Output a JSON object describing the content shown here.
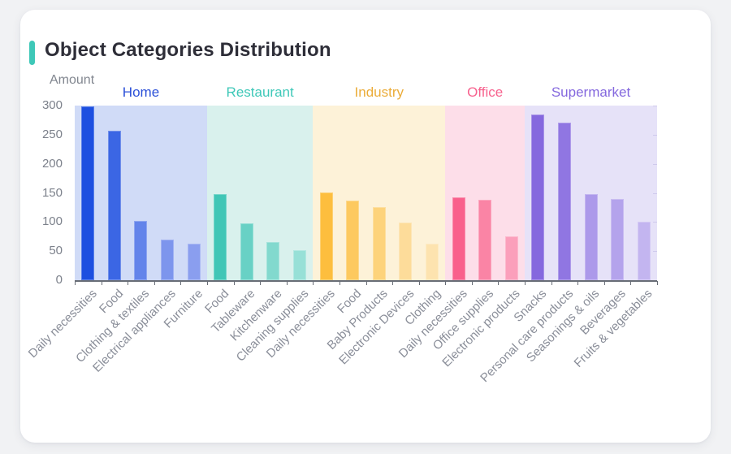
{
  "page": {
    "background": "#f1f2f4"
  },
  "card": {
    "background": "#ffffff",
    "accent_color": "#3EC8B8"
  },
  "chart_data": {
    "type": "bar",
    "title": "Object Categories Distribution",
    "xlabel": "",
    "ylabel": "Amount",
    "ylim": [
      0,
      300
    ],
    "yticks": [
      0,
      50,
      100,
      150,
      200,
      250,
      300
    ],
    "grid": false,
    "x_label_rotation": 45,
    "axis_color": "#686d76",
    "tick_label_color": "#8a8e99",
    "groups": [
      {
        "name": "Home",
        "label_color": "#2B50D8",
        "band_color": "#D0DBF7",
        "bars": [
          {
            "label": "Daily necessities",
            "value": 299,
            "color": "#1D4FE0"
          },
          {
            "label": "Food",
            "value": 257,
            "color": "#3B66E4"
          },
          {
            "label": "Clothing & textiles",
            "value": 102,
            "color": "#6384EA"
          },
          {
            "label": "Electrical appliances",
            "value": 70,
            "color": "#7D95ED"
          },
          {
            "label": "Furniture",
            "value": 63,
            "color": "#8A9EEF"
          }
        ]
      },
      {
        "name": "Restaurant",
        "label_color": "#3EC8B8",
        "band_color": "#D9F1ED",
        "bars": [
          {
            "label": "Food",
            "value": 148,
            "color": "#41C6B6"
          },
          {
            "label": "Tableware",
            "value": 97,
            "color": "#68D1C5"
          },
          {
            "label": "Kitchenware",
            "value": 65,
            "color": "#82D9CE"
          },
          {
            "label": "Cleaning supplies",
            "value": 51,
            "color": "#97E0D7"
          }
        ]
      },
      {
        "name": "Industry",
        "label_color": "#EBAC39",
        "band_color": "#FDF2D8",
        "bars": [
          {
            "label": "Daily necessities",
            "value": 150,
            "color": "#FDBE3E"
          },
          {
            "label": "Food",
            "value": 137,
            "color": "#FDC95F"
          },
          {
            "label": "Baby Products",
            "value": 125,
            "color": "#FDD37B"
          },
          {
            "label": "Electronic Devices",
            "value": 99,
            "color": "#FDDC9A"
          },
          {
            "label": "Clothing",
            "value": 63,
            "color": "#FDE3AF"
          }
        ]
      },
      {
        "name": "Office",
        "label_color": "#F7628E",
        "band_color": "#FDDEE9",
        "bars": [
          {
            "label": "Daily necessities",
            "value": 142,
            "color": "#F9608C"
          },
          {
            "label": "Office supplies",
            "value": 138,
            "color": "#FA84A5"
          },
          {
            "label": "Electronic products",
            "value": 75,
            "color": "#FB9FBB"
          }
        ]
      },
      {
        "name": "Supermarket",
        "label_color": "#8468DE",
        "band_color": "#E6E2F8",
        "bars": [
          {
            "label": "Snacks",
            "value": 284,
            "color": "#8568DE"
          },
          {
            "label": "Personal care products",
            "value": 270,
            "color": "#9076E2"
          },
          {
            "label": "Seasonings & oils",
            "value": 148,
            "color": "#AC99EA"
          },
          {
            "label": "Beverages",
            "value": 140,
            "color": "#B4A3EC"
          },
          {
            "label": "Fruits & vegetables",
            "value": 100,
            "color": "#C3B5F0"
          }
        ]
      }
    ]
  }
}
